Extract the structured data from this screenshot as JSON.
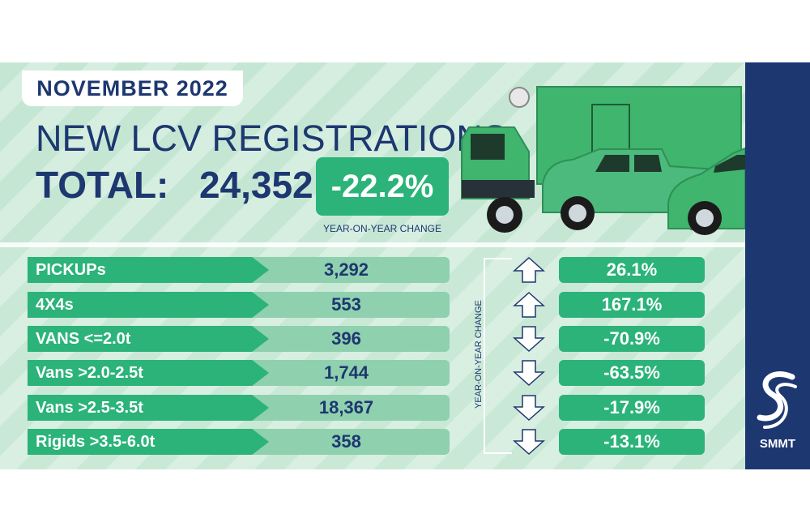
{
  "header": {
    "month": "NOVEMBER 2022",
    "title": "NEW LCV REGISTRATIONS",
    "total_label": "TOTAL:",
    "total_value": "24,352",
    "yoy_change": "-22.2%",
    "yoy_caption": "YEAR-ON-YEAR CHANGE"
  },
  "side_caption": "YEAR-ON-YEAR CHANGE",
  "brand": {
    "name": "SMMT"
  },
  "colors": {
    "navy": "#1d3770",
    "green": "#2bb37a",
    "light_green": "#8fd0ae",
    "background_stripe": "#c6e6d4"
  },
  "chart_data": {
    "type": "table",
    "columns": [
      "segment",
      "registrations",
      "yoy_change"
    ],
    "rows": [
      {
        "segment": "PICKUPs",
        "registrations": "3,292",
        "registrations_value": 3292,
        "yoy_change": "26.1%",
        "direction": "up"
      },
      {
        "segment": "4X4s",
        "registrations": "553",
        "registrations_value": 553,
        "yoy_change": "167.1%",
        "direction": "up"
      },
      {
        "segment": "VANS <=2.0t",
        "registrations": "396",
        "registrations_value": 396,
        "yoy_change": "-70.9%",
        "direction": "down"
      },
      {
        "segment": "Vans >2.0-2.5t",
        "registrations": "1,744",
        "registrations_value": 1744,
        "yoy_change": "-63.5%",
        "direction": "down"
      },
      {
        "segment": "Vans >2.5-3.5t",
        "registrations": "18,367",
        "registrations_value": 18367,
        "yoy_change": "-17.9%",
        "direction": "down"
      },
      {
        "segment": "Rigids >3.5-6.0t",
        "registrations": "358",
        "registrations_value": 358,
        "yoy_change": "-13.1%",
        "direction": "down"
      }
    ]
  }
}
